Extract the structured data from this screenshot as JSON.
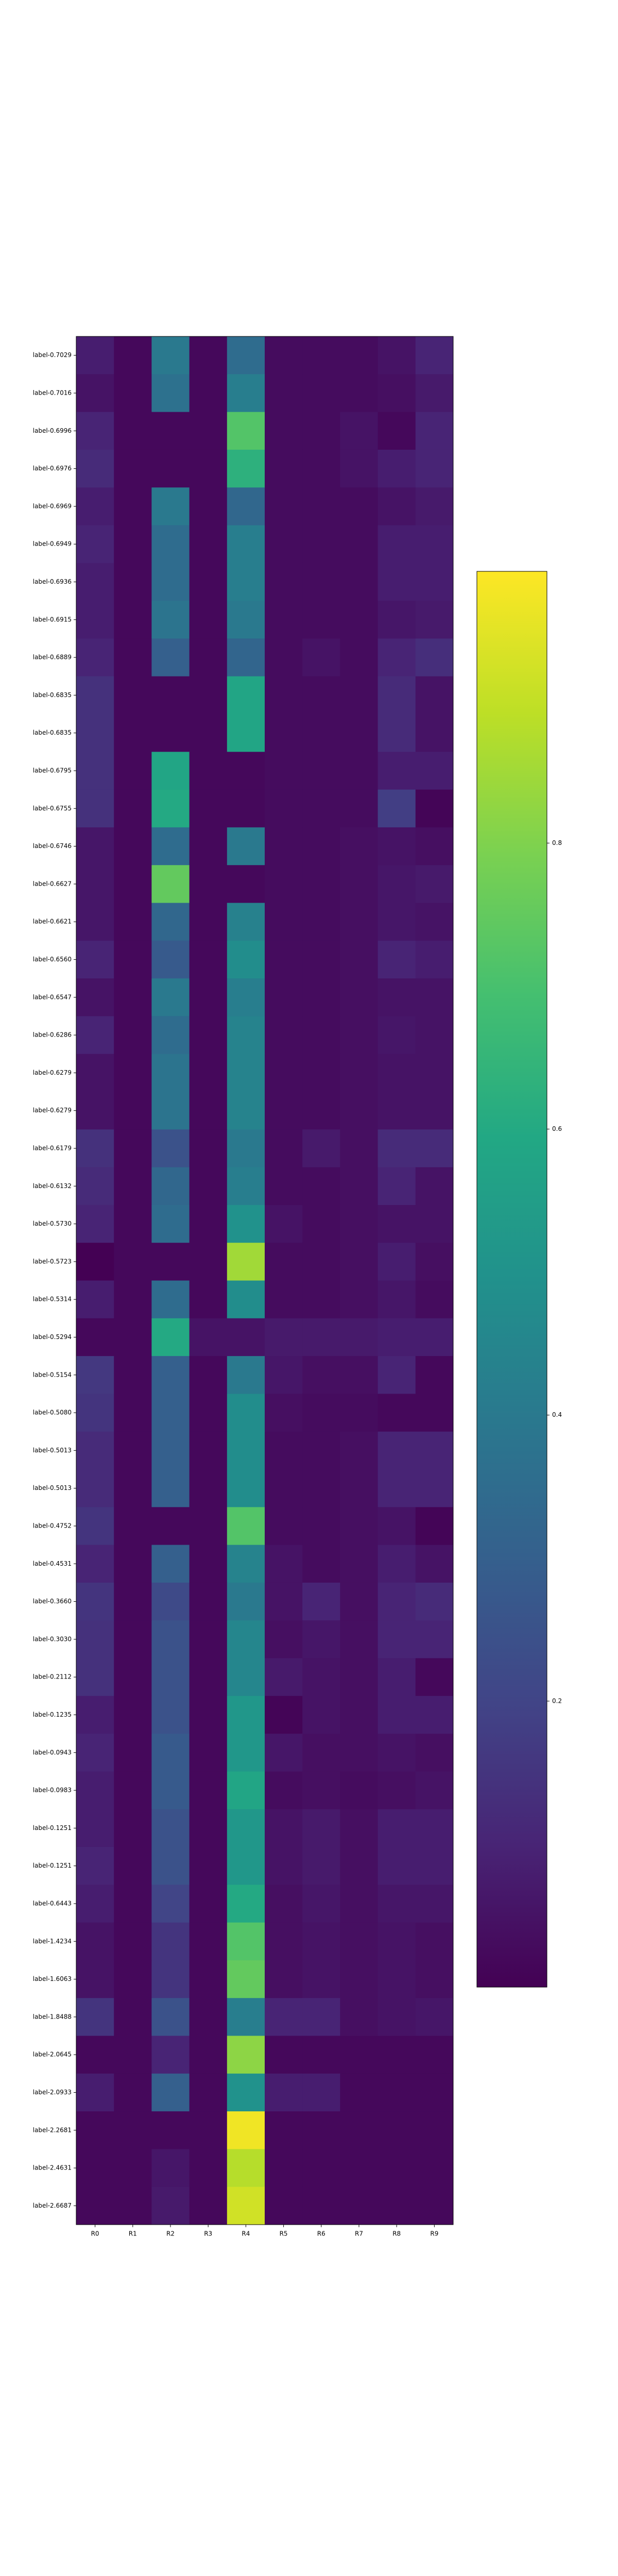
{
  "chart_data": {
    "type": "heatmap",
    "colormap": "viridis",
    "x": [
      "R0",
      "R1",
      "R2",
      "R3",
      "R4",
      "R5",
      "R6",
      "R7",
      "R8",
      "R9"
    ],
    "y": [
      "label-0.7029",
      "label-0.7016",
      "label-0.6996",
      "label-0.6976",
      "label-0.6969",
      "label-0.6949",
      "label-0.6936",
      "label-0.6915",
      "label-0.6889",
      "label-0.6835",
      "label-0.6835",
      "label-0.6795",
      "label-0.6755",
      "label-0.6746",
      "label-0.6627",
      "label-0.6621",
      "label-0.6560",
      "label-0.6547",
      "label-0.6286",
      "label-0.6279",
      "label-0.6279",
      "label-0.6179",
      "label-0.6132",
      "label-0.5730",
      "label-0.5723",
      "label-0.5314",
      "label-0.5294",
      "label-0.5154",
      "label-0.5080",
      "label-0.5013",
      "label-0.5013",
      "label-0.4752",
      "label-0.4531",
      "label-0.3660",
      "label-0.3030",
      "label-0.2112",
      "label-0.1235",
      "label-0.0943",
      "label-0.0983",
      "label-0.1251",
      "label-0.1251",
      "label-0.6443",
      "label-1.4234",
      "label-1.6063",
      "label-1.8488",
      "label-2.0645",
      "label-2.0933",
      "label-2.2681",
      "label-2.4631",
      "label-2.6687"
    ],
    "values": [
      [
        0.08,
        0.02,
        0.4,
        0.02,
        0.35,
        0.03,
        0.03,
        0.03,
        0.05,
        0.1
      ],
      [
        0.05,
        0.02,
        0.37,
        0.02,
        0.42,
        0.03,
        0.03,
        0.03,
        0.04,
        0.07
      ],
      [
        0.1,
        0.02,
        0.02,
        0.02,
        0.72,
        0.03,
        0.03,
        0.05,
        0.02,
        0.1
      ],
      [
        0.12,
        0.02,
        0.02,
        0.02,
        0.63,
        0.03,
        0.03,
        0.05,
        0.08,
        0.1
      ],
      [
        0.08,
        0.02,
        0.4,
        0.02,
        0.33,
        0.03,
        0.03,
        0.03,
        0.05,
        0.07
      ],
      [
        0.1,
        0.02,
        0.35,
        0.02,
        0.42,
        0.03,
        0.03,
        0.03,
        0.08,
        0.08
      ],
      [
        0.08,
        0.02,
        0.35,
        0.02,
        0.42,
        0.03,
        0.03,
        0.03,
        0.08,
        0.08
      ],
      [
        0.08,
        0.02,
        0.38,
        0.02,
        0.4,
        0.03,
        0.03,
        0.03,
        0.06,
        0.07
      ],
      [
        0.1,
        0.02,
        0.3,
        0.02,
        0.32,
        0.03,
        0.05,
        0.03,
        0.1,
        0.13
      ],
      [
        0.14,
        0.02,
        0.02,
        0.02,
        0.58,
        0.03,
        0.03,
        0.03,
        0.12,
        0.05
      ],
      [
        0.14,
        0.02,
        0.02,
        0.02,
        0.58,
        0.03,
        0.03,
        0.03,
        0.12,
        0.05
      ],
      [
        0.14,
        0.02,
        0.58,
        0.02,
        0.02,
        0.03,
        0.03,
        0.03,
        0.08,
        0.08
      ],
      [
        0.14,
        0.02,
        0.6,
        0.02,
        0.02,
        0.03,
        0.03,
        0.03,
        0.18,
        0.01
      ],
      [
        0.06,
        0.02,
        0.35,
        0.02,
        0.4,
        0.03,
        0.03,
        0.04,
        0.05,
        0.04
      ],
      [
        0.06,
        0.02,
        0.75,
        0.02,
        0.02,
        0.03,
        0.03,
        0.04,
        0.06,
        0.07
      ],
      [
        0.06,
        0.02,
        0.33,
        0.02,
        0.43,
        0.03,
        0.03,
        0.04,
        0.06,
        0.05
      ],
      [
        0.1,
        0.02,
        0.28,
        0.02,
        0.48,
        0.03,
        0.03,
        0.04,
        0.1,
        0.08
      ],
      [
        0.05,
        0.02,
        0.4,
        0.02,
        0.42,
        0.03,
        0.03,
        0.04,
        0.05,
        0.05
      ],
      [
        0.1,
        0.02,
        0.35,
        0.02,
        0.44,
        0.03,
        0.03,
        0.04,
        0.06,
        0.05
      ],
      [
        0.05,
        0.02,
        0.38,
        0.02,
        0.44,
        0.03,
        0.03,
        0.04,
        0.05,
        0.05
      ],
      [
        0.05,
        0.02,
        0.38,
        0.02,
        0.44,
        0.03,
        0.03,
        0.04,
        0.05,
        0.05
      ],
      [
        0.14,
        0.02,
        0.25,
        0.02,
        0.4,
        0.03,
        0.07,
        0.04,
        0.12,
        0.12
      ],
      [
        0.12,
        0.02,
        0.33,
        0.02,
        0.42,
        0.03,
        0.03,
        0.04,
        0.1,
        0.05
      ],
      [
        0.1,
        0.02,
        0.35,
        0.02,
        0.5,
        0.05,
        0.03,
        0.04,
        0.05,
        0.05
      ],
      [
        0.0,
        0.02,
        0.02,
        0.02,
        0.85,
        0.03,
        0.03,
        0.04,
        0.08,
        0.04
      ],
      [
        0.08,
        0.02,
        0.35,
        0.02,
        0.48,
        0.03,
        0.03,
        0.04,
        0.06,
        0.03
      ],
      [
        0.02,
        0.02,
        0.6,
        0.05,
        0.05,
        0.07,
        0.07,
        0.07,
        0.08,
        0.08
      ],
      [
        0.16,
        0.02,
        0.3,
        0.02,
        0.4,
        0.06,
        0.04,
        0.04,
        0.1,
        0.02
      ],
      [
        0.15,
        0.02,
        0.3,
        0.02,
        0.48,
        0.04,
        0.03,
        0.03,
        0.02,
        0.02
      ],
      [
        0.12,
        0.02,
        0.3,
        0.02,
        0.48,
        0.03,
        0.03,
        0.04,
        0.1,
        0.1
      ],
      [
        0.12,
        0.02,
        0.3,
        0.02,
        0.48,
        0.03,
        0.03,
        0.04,
        0.1,
        0.1
      ],
      [
        0.15,
        0.02,
        0.02,
        0.02,
        0.72,
        0.03,
        0.03,
        0.04,
        0.05,
        0.01
      ],
      [
        0.1,
        0.02,
        0.3,
        0.02,
        0.44,
        0.05,
        0.03,
        0.04,
        0.08,
        0.05
      ],
      [
        0.15,
        0.02,
        0.22,
        0.02,
        0.4,
        0.05,
        0.1,
        0.04,
        0.1,
        0.12
      ],
      [
        0.14,
        0.02,
        0.25,
        0.02,
        0.45,
        0.04,
        0.06,
        0.04,
        0.1,
        0.1
      ],
      [
        0.14,
        0.02,
        0.25,
        0.02,
        0.45,
        0.07,
        0.05,
        0.04,
        0.08,
        0.02
      ],
      [
        0.08,
        0.02,
        0.25,
        0.02,
        0.52,
        0.01,
        0.05,
        0.04,
        0.08,
        0.08
      ],
      [
        0.1,
        0.02,
        0.28,
        0.02,
        0.52,
        0.06,
        0.04,
        0.04,
        0.05,
        0.04
      ],
      [
        0.08,
        0.02,
        0.28,
        0.02,
        0.58,
        0.03,
        0.04,
        0.03,
        0.04,
        0.05
      ],
      [
        0.08,
        0.02,
        0.25,
        0.02,
        0.52,
        0.05,
        0.07,
        0.04,
        0.08,
        0.08
      ],
      [
        0.1,
        0.02,
        0.25,
        0.02,
        0.52,
        0.05,
        0.07,
        0.04,
        0.08,
        0.08
      ],
      [
        0.08,
        0.02,
        0.2,
        0.02,
        0.6,
        0.04,
        0.06,
        0.04,
        0.06,
        0.06
      ],
      [
        0.05,
        0.02,
        0.15,
        0.02,
        0.72,
        0.04,
        0.05,
        0.04,
        0.05,
        0.04
      ],
      [
        0.05,
        0.02,
        0.15,
        0.02,
        0.75,
        0.04,
        0.05,
        0.04,
        0.05,
        0.04
      ],
      [
        0.15,
        0.02,
        0.25,
        0.02,
        0.42,
        0.1,
        0.1,
        0.04,
        0.05,
        0.06
      ],
      [
        0.02,
        0.02,
        0.1,
        0.02,
        0.82,
        0.02,
        0.02,
        0.02,
        0.02,
        0.02
      ],
      [
        0.08,
        0.02,
        0.3,
        0.02,
        0.5,
        0.08,
        0.08,
        0.02,
        0.02,
        0.02
      ],
      [
        0.02,
        0.02,
        0.02,
        0.02,
        0.97,
        0.02,
        0.02,
        0.02,
        0.02,
        0.02
      ],
      [
        0.02,
        0.02,
        0.06,
        0.02,
        0.88,
        0.02,
        0.02,
        0.02,
        0.02,
        0.02
      ],
      [
        0.02,
        0.02,
        0.07,
        0.02,
        0.92,
        0.02,
        0.02,
        0.02,
        0.02,
        0.02
      ]
    ],
    "clim": [
      0,
      0.99
    ],
    "cticks": [
      0.2,
      0.4,
      0.6,
      0.8
    ]
  }
}
